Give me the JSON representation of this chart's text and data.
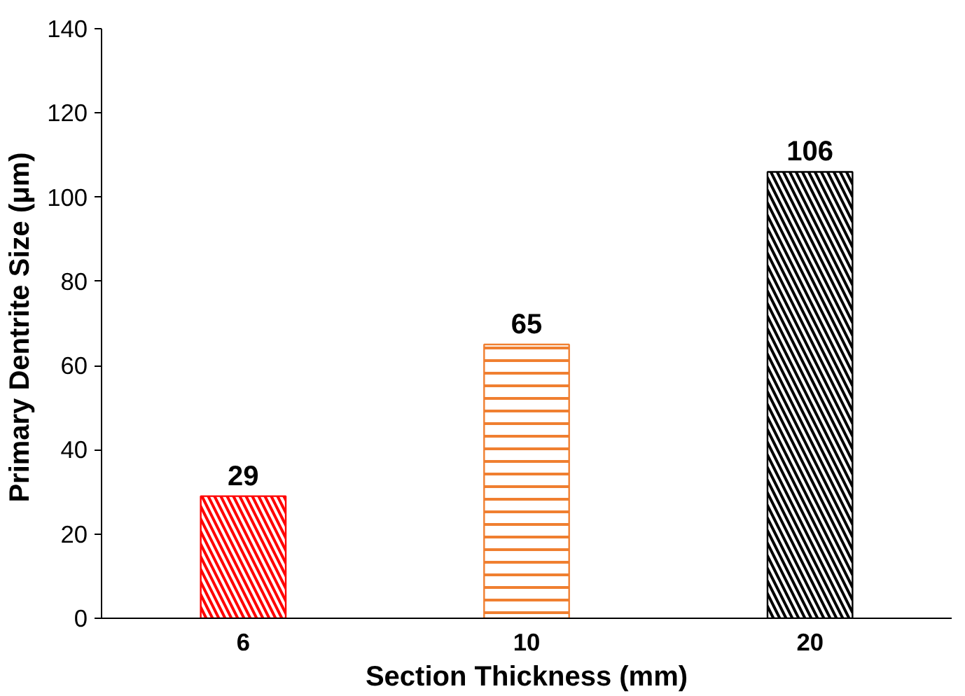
{
  "chart_data": {
    "type": "bar",
    "xlabel": "Section Thickness (mm)",
    "ylabel": "Primary Dentrite Size  (μm)",
    "categories": [
      "6",
      "10",
      "20"
    ],
    "values": [
      29,
      65,
      106
    ],
    "colors": [
      "#ff0000",
      "#f07f30",
      "#000000"
    ],
    "ylim": [
      0,
      140
    ],
    "yticks": [
      0,
      20,
      40,
      60,
      80,
      100,
      120,
      140
    ],
    "data_labels": true,
    "grid": false
  }
}
